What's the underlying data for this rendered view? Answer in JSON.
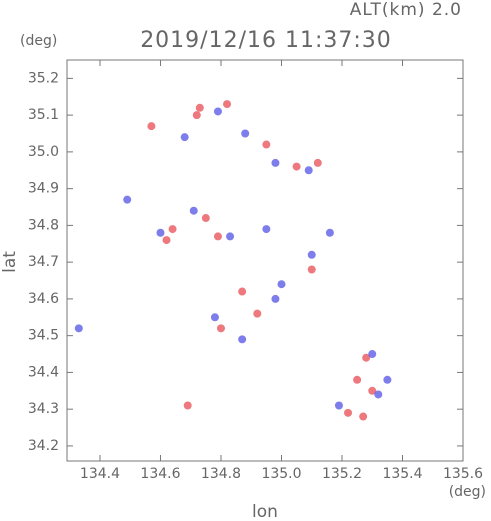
{
  "chart_data": {
    "type": "scatter",
    "top_label": "ALT(km) 2.0",
    "y_unit": "(deg)",
    "title": "2019/12/16 11:37:30",
    "y_label": "lat",
    "x_label": "lon",
    "x_unit": "(deg)",
    "xlim": [
      134.291,
      135.6
    ],
    "ylim": [
      34.159,
      35.25
    ],
    "xticks": [
      134.4,
      134.6,
      134.8,
      {
        "value": 135,
        "label": "135.0"
      },
      135.2,
      135.4,
      135.6
    ],
    "yticks": [
      34.2,
      34.3,
      34.4,
      34.5,
      34.6,
      34.7,
      34.8,
      34.9,
      {
        "value": 35,
        "label": "35.0"
      },
      35.1,
      35.2
    ],
    "series": [
      {
        "color": "#e8585e",
        "x": [
          134.73,
          134.72,
          134.82,
          134.95,
          135.05,
          135.12,
          134.75,
          134.79,
          134.62,
          134.87,
          134.8,
          134.92,
          135.28,
          135.25,
          135.3,
          135.22,
          134.69,
          134.57,
          135.1,
          134.64,
          135.27
        ],
        "values": [
          35.12,
          35.1,
          35.13,
          35.02,
          34.96,
          34.97,
          34.82,
          34.77,
          34.76,
          34.62,
          34.52,
          34.56,
          34.44,
          34.38,
          34.35,
          34.29,
          34.31,
          35.07,
          34.68,
          34.79,
          34.28
        ]
      },
      {
        "color": "#5c5ce6",
        "x": [
          134.79,
          134.68,
          134.88,
          134.98,
          135.09,
          134.71,
          134.83,
          134.6,
          134.95,
          134.87,
          134.78,
          135.0,
          135.1,
          135.32,
          135.19,
          135.35,
          134.33,
          134.49,
          134.98,
          135.16,
          135.3
        ],
        "values": [
          35.11,
          35.04,
          35.05,
          34.97,
          34.95,
          34.84,
          34.77,
          34.78,
          34.79,
          34.49,
          34.55,
          34.64,
          34.72,
          34.34,
          34.31,
          34.38,
          34.52,
          34.87,
          34.6,
          34.78,
          34.45
        ]
      }
    ]
  }
}
